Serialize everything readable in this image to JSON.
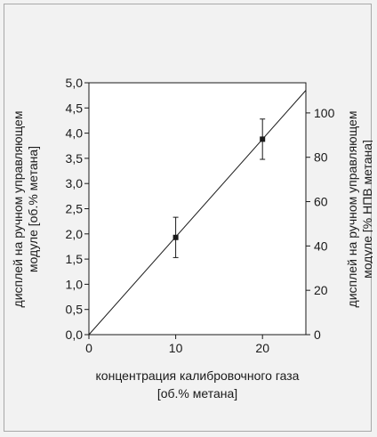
{
  "chart_data": {
    "type": "scatter",
    "x": {
      "label_line1": "концентрация калибровочного газа",
      "label_line2": "[об.% метана]",
      "ticks": [
        "0",
        "10",
        "20"
      ],
      "range": [
        0,
        25
      ]
    },
    "y_left": {
      "label_line1": "дисплей на ручном управляющем",
      "label_line2": "модуле [об.% метана]",
      "ticks": [
        "0,0",
        "0,5",
        "1,0",
        "1,5",
        "2,0",
        "2,5",
        "3,0",
        "3,5",
        "4,0",
        "4,5",
        "5,0"
      ],
      "range": [
        0,
        5
      ]
    },
    "y_right": {
      "label_line1": "дисплей на ручном управляющем",
      "label_line2": "модуле [% НПВ метана]",
      "ticks": [
        "0",
        "20",
        "40",
        "60",
        "80",
        "100"
      ],
      "range": [
        0,
        113.6
      ]
    },
    "points": [
      {
        "x": 10,
        "y": 1.93,
        "err_low": 1.53,
        "err_high": 2.33
      },
      {
        "x": 20,
        "y": 3.88,
        "err_low": 3.48,
        "err_high": 4.28
      }
    ],
    "line": {
      "x": [
        0,
        25
      ],
      "y": [
        0,
        4.85
      ]
    },
    "grid": false,
    "legend": "none"
  }
}
